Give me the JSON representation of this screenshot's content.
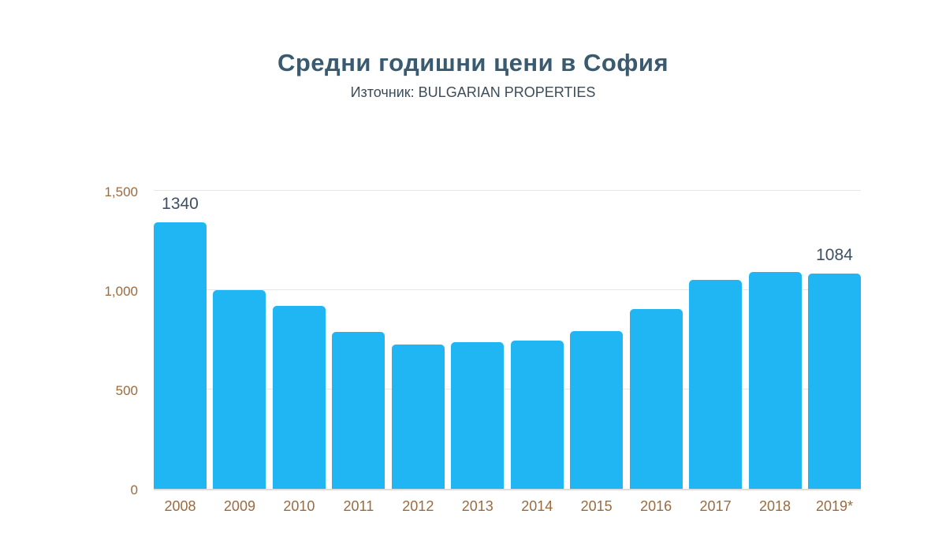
{
  "header": {
    "title": "Средни годишни цени в София",
    "subtitle": "Източник: BULGARIAN PROPERTIES"
  },
  "chart_data": {
    "type": "bar",
    "title": "Средни годишни цени в София",
    "subtitle": "Източник: BULGARIAN PROPERTIES",
    "categories": [
      "2008",
      "2009",
      "2010",
      "2011",
      "2012",
      "2013",
      "2014",
      "2015",
      "2016",
      "2017",
      "2018",
      "2019*"
    ],
    "values": [
      1340,
      1000,
      920,
      790,
      725,
      740,
      745,
      795,
      905,
      1050,
      1090,
      1084
    ],
    "labeled_indices": [
      0,
      11
    ],
    "data_labels": [
      "1340",
      "1084"
    ],
    "xlabel": "",
    "ylabel": "",
    "ylim": [
      0,
      1500
    ],
    "yticks": [
      0,
      500,
      1000,
      1500
    ],
    "ytick_labels": [
      "0",
      "500",
      "1,000",
      "1,500"
    ],
    "grid": true,
    "legend": false,
    "colors": {
      "bar": "#1fb6f3",
      "title": "#3a5a70",
      "subtitle": "#3c4d59",
      "ticks": "#9a6b41",
      "value_labels": "#3e5063",
      "gridline": "#e6e6e6"
    }
  }
}
